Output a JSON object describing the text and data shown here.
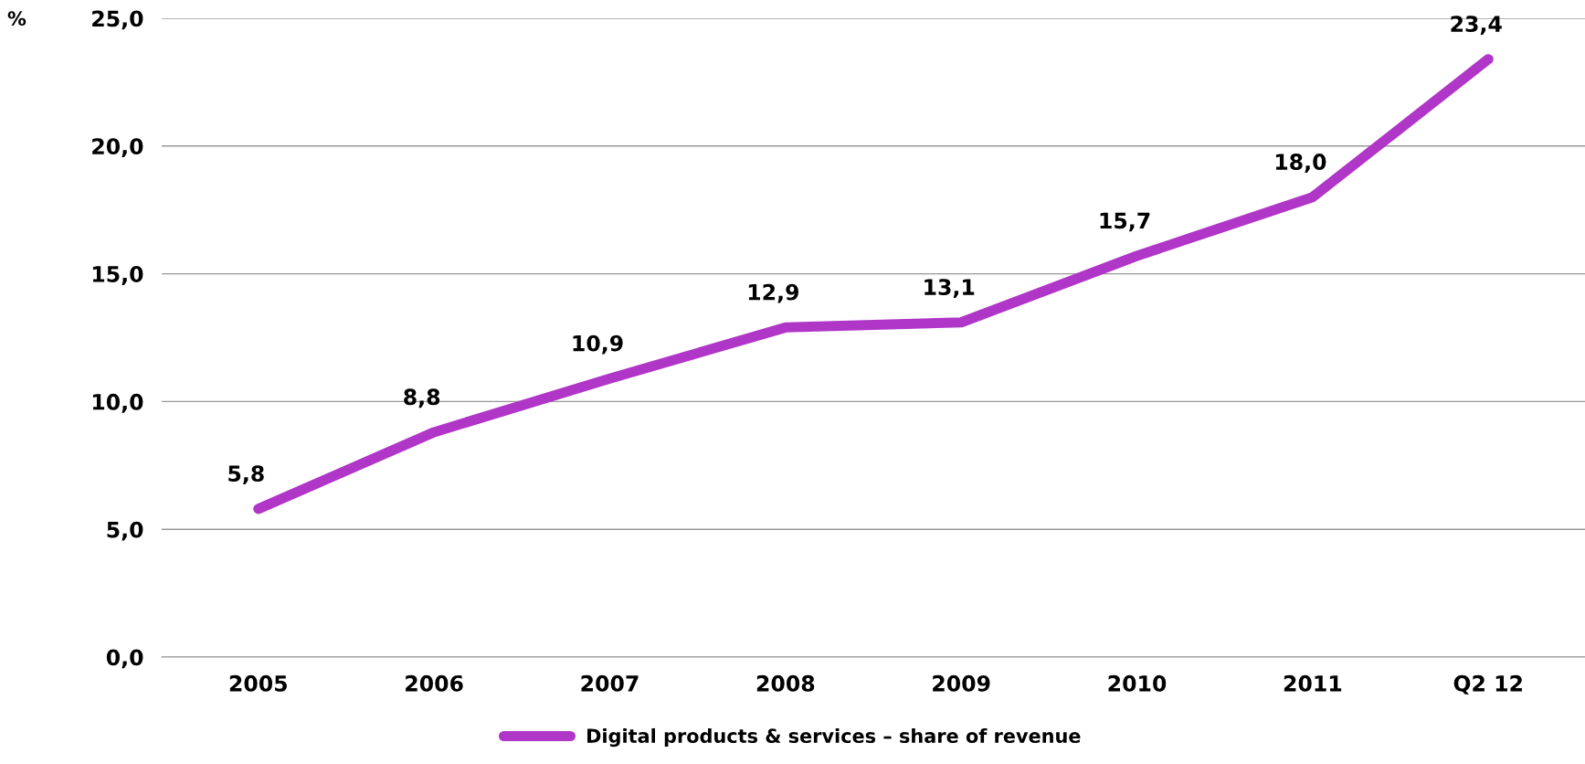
{
  "chart_data": {
    "type": "line",
    "ylabel": "%",
    "categories": [
      "2005",
      "2006",
      "2007",
      "2008",
      "2009",
      "2010",
      "2011",
      "Q2 12"
    ],
    "series": [
      {
        "name": "Digital products & services – share of revenue",
        "color": "#b036c8",
        "values": [
          5.8,
          8.8,
          10.9,
          12.9,
          13.1,
          15.7,
          18.0,
          23.4
        ],
        "value_labels": [
          "5,8",
          "8,8",
          "10,9",
          "12,9",
          "13,1",
          "15,7",
          "18,0",
          "23,4"
        ]
      }
    ],
    "ylim": [
      0,
      25
    ],
    "yticks": [
      {
        "value": 0,
        "label": "0,0"
      },
      {
        "value": 5,
        "label": "5,0"
      },
      {
        "value": 10,
        "label": "10,0"
      },
      {
        "value": 15,
        "label": "15,0"
      },
      {
        "value": 20,
        "label": "20,0"
      },
      {
        "value": 25,
        "label": "25,0"
      }
    ],
    "grid": "y",
    "legend": "bottom",
    "marker": "none",
    "line_style": "solid"
  }
}
